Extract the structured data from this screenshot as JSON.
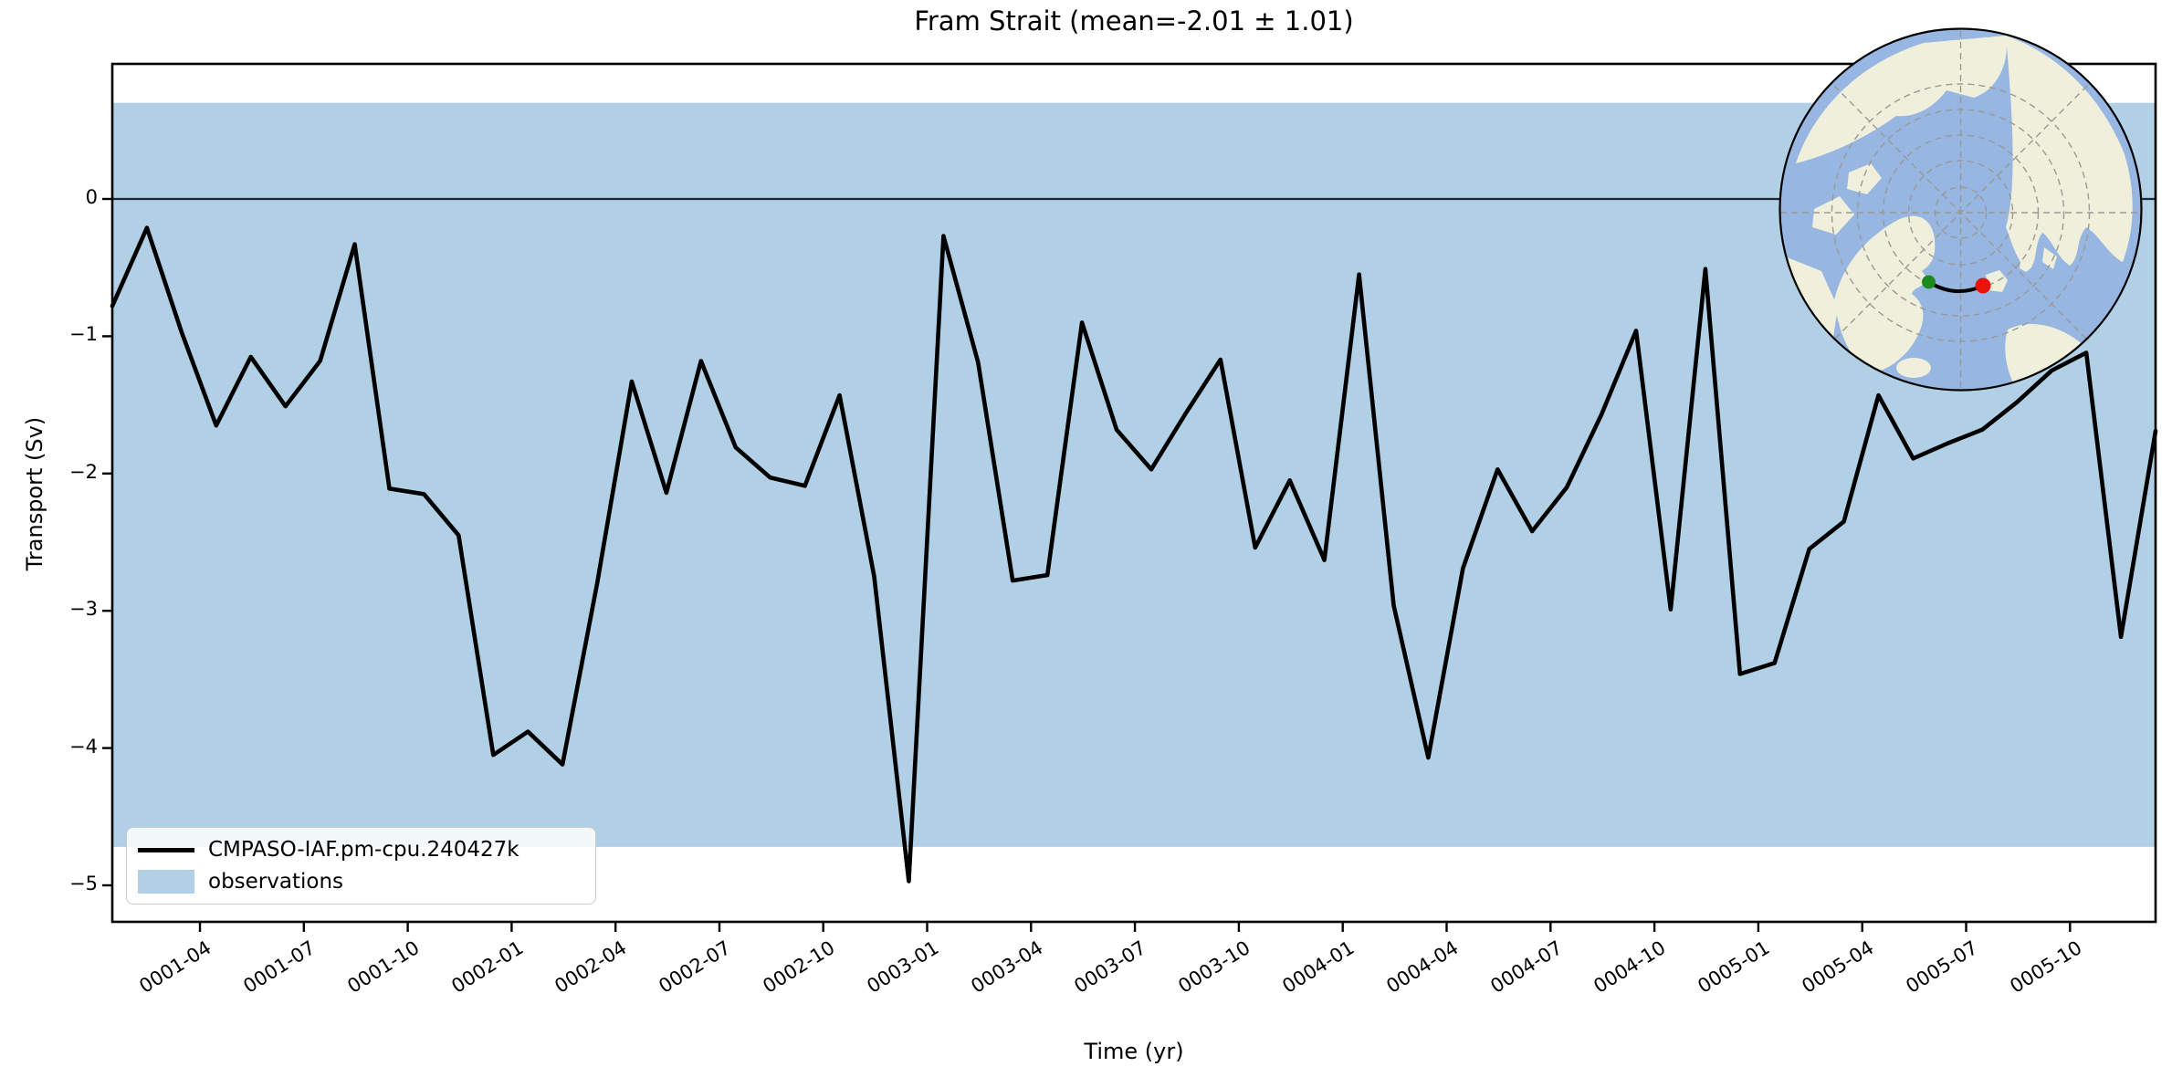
{
  "title": "Fram Strait (mean=-2.01 ± 1.01)",
  "axes_labels": {
    "xlabel": "Time (yr)",
    "ylabel": "Transport (Sv)"
  },
  "legend": {
    "series_label": "CMPASO-IAF.pm-cpu.240427k",
    "band_label": "observations"
  },
  "chart_data": {
    "type": "line",
    "title": "Fram Strait (mean=-2.01 ± 1.01)",
    "xlabel": "Time (yr)",
    "ylabel": "Transport (Sv)",
    "x_start_month": "0001-01",
    "x_end_month": "0005-12",
    "n_points": 60,
    "x_tick_labels": [
      "0001-04",
      "0001-07",
      "0001-10",
      "0002-01",
      "0002-04",
      "0002-07",
      "0002-10",
      "0003-01",
      "0003-04",
      "0003-07",
      "0003-10",
      "0004-01",
      "0004-04",
      "0004-07",
      "0004-10",
      "0005-01",
      "0005-04",
      "0005-07",
      "0005-10"
    ],
    "x_tick_month_index": [
      3,
      6,
      9,
      12,
      15,
      18,
      21,
      24,
      27,
      30,
      33,
      36,
      39,
      42,
      45,
      48,
      51,
      54,
      57
    ],
    "x_tick_offset_months": -0.47,
    "y_ticks": [
      0,
      -1,
      -2,
      -3,
      -4,
      -5
    ],
    "y_tick_labels": [
      "0",
      "−1",
      "−2",
      "−3",
      "−4",
      "−5"
    ],
    "ylim": [
      -5.27,
      0.98
    ],
    "grid": false,
    "legend_position": "lower left",
    "zero_line": {
      "show": true,
      "color": "#1c2733"
    },
    "band": {
      "label": "observations",
      "lo": -4.72,
      "hi": 0.7,
      "center": -2.01,
      "halfwidth": 2.71,
      "color": "#b1cfe5"
    },
    "series": [
      {
        "name": "CMPASO-IAF.pm-cpu.240427k",
        "color": "#000000",
        "mean": -2.01,
        "std": 1.01,
        "values": [
          -0.78,
          -0.21,
          -0.97,
          -1.65,
          -1.15,
          -1.51,
          -1.18,
          -0.33,
          -2.11,
          -2.15,
          -2.45,
          -4.05,
          -3.88,
          -4.12,
          -2.8,
          -1.33,
          -2.14,
          -1.18,
          -1.81,
          -2.03,
          -2.09,
          -1.43,
          -2.75,
          -4.97,
          -0.27,
          -1.19,
          -2.78,
          -2.74,
          -0.9,
          -1.68,
          -1.97,
          -1.56,
          -1.17,
          -2.54,
          -2.05,
          -2.63,
          -0.55,
          -2.96,
          -4.07,
          -2.69,
          -1.97,
          -2.42,
          -2.1,
          -1.57,
          -0.96,
          -2.99,
          -0.51,
          -3.46,
          -3.38,
          -2.55,
          -2.35,
          -1.43,
          -1.89,
          -1.78,
          -1.68,
          -1.48,
          -1.25,
          -1.12,
          -3.19,
          -1.69
        ]
      }
    ]
  },
  "inset_map": {
    "projection": "north-polar",
    "ocean_color": "#97b6e1",
    "land_color": "#efefdb",
    "graticule_color": "#9a9a96",
    "transect_color": "#000000",
    "start_marker_color": "#1e8b1e",
    "end_marker_color": "#ea130b"
  }
}
